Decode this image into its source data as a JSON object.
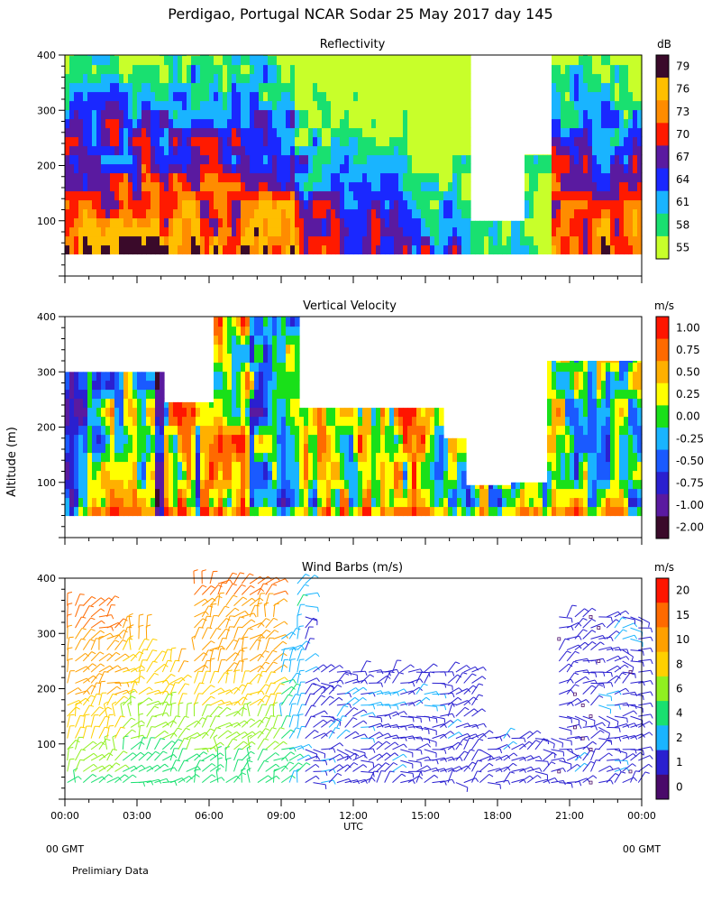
{
  "title": "Perdigao, Portugal  NCAR Sodar  25 May 2017  day 145",
  "y_axis_label": "Altitude (m)",
  "x_axis_label": "UTC",
  "x_ticks": [
    "00:00",
    "03:00",
    "06:00",
    "09:00",
    "12:00",
    "15:00",
    "18:00",
    "21:00",
    "00:00"
  ],
  "y_ticks": [
    "100",
    "200",
    "300",
    "400"
  ],
  "footer": {
    "left_gmt": "00 GMT",
    "right_gmt": "00 GMT",
    "note": "Prelimiary Data"
  },
  "chart_data": [
    {
      "type": "heatmap",
      "title": "Reflectivity",
      "unit": "dB",
      "xlabel": "UTC",
      "ylabel": "Altitude (m)",
      "xlim": [
        0,
        24
      ],
      "ylim": [
        0,
        400
      ],
      "colorbar": {
        "labels": [
          "79",
          "76",
          "73",
          "70",
          "67",
          "64",
          "61",
          "58",
          "55"
        ],
        "colors": [
          "#3a0a2a",
          "#ffbf00",
          "#ff8c00",
          "#ff1a00",
          "#5a1aa0",
          "#1a28ff",
          "#19b4ff",
          "#19e070",
          "#c8ff2a"
        ]
      }
    },
    {
      "type": "heatmap",
      "title": "Vertical Velocity",
      "unit": "m/s",
      "xlabel": "UTC",
      "ylabel": "Altitude (m)",
      "xlim": [
        0,
        24
      ],
      "ylim": [
        0,
        400
      ],
      "colorbar": {
        "labels": [
          "1.00",
          "0.75",
          "0.50",
          "0.25",
          "0.00",
          "-0.25",
          "-0.50",
          "-0.75",
          "-1.00",
          "-2.00"
        ],
        "colors": [
          "#ff1500",
          "#ff6a00",
          "#ffb000",
          "#ffff00",
          "#19e019",
          "#19b4ff",
          "#1a5aff",
          "#2a20d0",
          "#5a1aa0",
          "#3a0a2a"
        ]
      }
    },
    {
      "type": "scatter",
      "title": "Wind Barbs (m/s)",
      "unit": "m/s",
      "xlabel": "UTC",
      "ylabel": "Altitude (m)",
      "xlim": [
        0,
        24
      ],
      "ylim": [
        0,
        400
      ],
      "colorbar": {
        "labels": [
          "20",
          "15",
          "10",
          "8",
          "6",
          "4",
          "2",
          "1",
          "0"
        ],
        "colors": [
          "#ff1500",
          "#ff6a00",
          "#ffa000",
          "#ffd000",
          "#90f020",
          "#19e070",
          "#19b4ff",
          "#2a20d0",
          "#4a0a6a"
        ]
      }
    }
  ]
}
